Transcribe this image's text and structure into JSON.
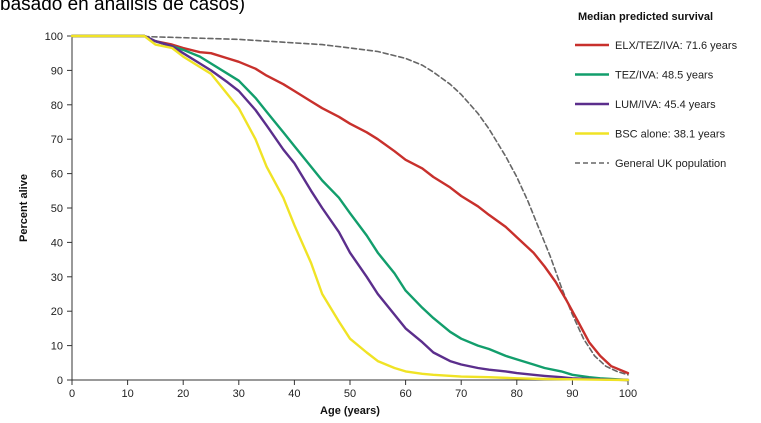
{
  "caption": "basado en análisis de casos)",
  "chart_data": {
    "type": "line",
    "xlabel": "Age (years)",
    "ylabel": "Percent alive",
    "xlim": [
      0,
      100
    ],
    "ylim": [
      0,
      100
    ],
    "x_ticks": [
      "0",
      "10",
      "20",
      "30",
      "40",
      "50",
      "60",
      "70",
      "80",
      "90",
      "100"
    ],
    "y_ticks": [
      "0",
      "10",
      "20",
      "30",
      "40",
      "50",
      "60",
      "70",
      "80",
      "90",
      "100"
    ],
    "legend_title": "Median predicted survival",
    "legend_position": "top-right",
    "grid": false,
    "series": [
      {
        "name": "ELX/TEZ/IVA: 71.6 years",
        "color": "#c8302c",
        "dash": "solid",
        "x": [
          0,
          5,
          10,
          13,
          15,
          18,
          20,
          23,
          25,
          28,
          30,
          33,
          35,
          38,
          40,
          43,
          45,
          48,
          50,
          53,
          55,
          58,
          60,
          63,
          65,
          68,
          70,
          73,
          75,
          78,
          80,
          83,
          85,
          87,
          89,
          91,
          93,
          95,
          97,
          100
        ],
        "y": [
          100,
          100,
          100,
          100,
          98.5,
          97.5,
          96.5,
          95.3,
          95,
          93.5,
          92.5,
          90.5,
          88.5,
          86,
          84,
          81,
          79,
          76.5,
          74.5,
          72,
          70,
          66.5,
          64,
          61.5,
          59,
          56,
          53.5,
          50.5,
          48,
          44.5,
          41.5,
          37,
          33,
          28.5,
          23,
          17,
          11,
          7,
          4,
          2
        ]
      },
      {
        "name": "TEZ/IVA: 48.5 years",
        "color": "#129e6c",
        "dash": "solid",
        "x": [
          0,
          5,
          10,
          13,
          15,
          18,
          20,
          23,
          25,
          28,
          30,
          33,
          35,
          38,
          40,
          43,
          45,
          48,
          50,
          53,
          55,
          58,
          60,
          63,
          65,
          68,
          70,
          73,
          75,
          78,
          80,
          83,
          85,
          88,
          90,
          93,
          95,
          100
        ],
        "y": [
          100,
          100,
          100,
          100,
          98.5,
          97,
          96,
          94,
          92,
          89,
          87,
          82,
          78,
          72,
          68,
          62,
          58,
          53,
          48.5,
          42,
          37,
          31,
          26,
          21,
          18,
          14,
          12,
          10,
          9,
          7,
          6,
          4.5,
          3.5,
          2.5,
          1.5,
          0.8,
          0.5,
          0
        ]
      },
      {
        "name": "LUM/IVA: 45.4 years",
        "color": "#5b2e8c",
        "dash": "solid",
        "x": [
          0,
          5,
          10,
          13,
          15,
          18,
          20,
          23,
          25,
          28,
          30,
          33,
          35,
          38,
          40,
          43,
          45,
          48,
          50,
          53,
          55,
          58,
          60,
          63,
          65,
          68,
          70,
          73,
          75,
          78,
          80,
          83,
          85,
          88,
          90,
          93,
          95,
          100
        ],
        "y": [
          100,
          100,
          100,
          100,
          98.5,
          97,
          95,
          92,
          90,
          86.5,
          84,
          78.5,
          74,
          67,
          63,
          55,
          50,
          43,
          37,
          30,
          25,
          19,
          15,
          11,
          8,
          5.5,
          4.5,
          3.5,
          3,
          2.5,
          2,
          1.5,
          1.2,
          0.8,
          0.5,
          0.3,
          0.2,
          0
        ]
      },
      {
        "name": "BSC alone: 38.1 years",
        "color": "#f0e325",
        "dash": "solid",
        "x": [
          0,
          5,
          10,
          13,
          15,
          18,
          20,
          23,
          25,
          28,
          30,
          33,
          35,
          38,
          40,
          43,
          45,
          48,
          50,
          53,
          55,
          58,
          60,
          63,
          65,
          70,
          75,
          80,
          85,
          90,
          95,
          100
        ],
        "y": [
          100,
          100,
          100,
          100,
          97.5,
          96.5,
          94,
          91,
          89,
          83,
          79,
          70,
          62,
          53,
          45,
          34,
          25,
          17,
          12,
          8,
          5.5,
          3.5,
          2.5,
          1.8,
          1.5,
          1,
          0.8,
          0.5,
          0.3,
          0.2,
          0.1,
          0
        ]
      },
      {
        "name": "General UK population",
        "color": "#666666",
        "dash": "dashed",
        "x": [
          0,
          10,
          20,
          30,
          40,
          45,
          50,
          55,
          60,
          63,
          65,
          68,
          70,
          73,
          75,
          78,
          80,
          82,
          84,
          86,
          88,
          90,
          92,
          94,
          96,
          98,
          100
        ],
        "y": [
          100,
          100,
          99.5,
          99,
          98,
          97.5,
          96.5,
          95.5,
          93.5,
          91.5,
          89.5,
          86,
          83,
          77.5,
          73,
          65,
          59,
          52,
          44,
          36,
          27,
          19,
          12,
          7,
          4,
          2.5,
          1.5
        ]
      }
    ]
  }
}
